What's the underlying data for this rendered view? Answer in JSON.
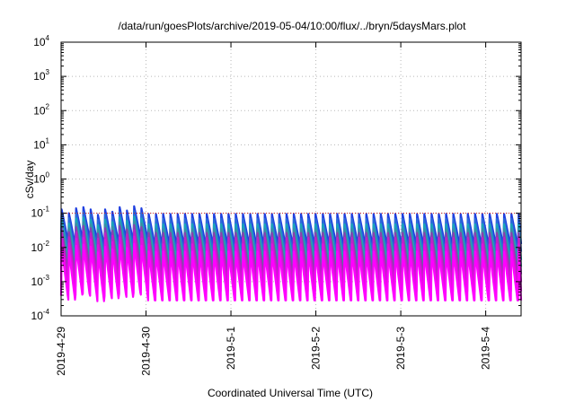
{
  "chart_data": {
    "type": "line",
    "title": "/data/run/goesPlots/archive/2019-05-04/10:00/flux/../bryn/5daysMars.plot",
    "xlabel": "Coordinated Universal Time (UTC)",
    "ylabel": "cSv/day",
    "yscale": "log",
    "ylim": [
      0.0001,
      10000
    ],
    "xlim": [
      "2019-04-29 00:00",
      "2019-05-04 10:00"
    ],
    "grid": true,
    "yticks": [
      {
        "base": "10",
        "exp": "-4"
      },
      {
        "base": "10",
        "exp": "-3"
      },
      {
        "base": "10",
        "exp": "-2"
      },
      {
        "base": "10",
        "exp": "-1"
      },
      {
        "base": "10",
        "exp": "0"
      },
      {
        "base": "10",
        "exp": "1"
      },
      {
        "base": "10",
        "exp": "2"
      },
      {
        "base": "10",
        "exp": "3"
      },
      {
        "base": "10",
        "exp": "4"
      }
    ],
    "xticks": [
      "2019-4-29",
      "2019-4-30",
      "2019-5-1",
      "2019-5-2",
      "2019-5-3",
      "2019-5-4"
    ],
    "sawtooth": {
      "start_hour": 0,
      "end_hour": 130,
      "period_hours": 2.05,
      "peak_values_first_day": [
        0.13,
        0.1,
        0.14,
        0.15,
        0.13,
        0.09,
        0.13,
        0.11,
        0.15,
        0.12,
        0.16,
        0.14
      ],
      "peak_value_typical": 0.095,
      "reference_level": 0.1
    },
    "series": [
      {
        "color": "#1f3fe0",
        "peak_factor": 1.0,
        "decay": 1.6
      },
      {
        "color": "#2a6ad8",
        "peak_factor": 0.72,
        "decay": 1.75
      },
      {
        "color": "#19a6b8",
        "peak_factor": 0.5,
        "decay": 1.9
      },
      {
        "color": "#3c8fa0",
        "peak_factor": 0.36,
        "decay": 2.0
      },
      {
        "color": "#8a3fb0",
        "peak_factor": 0.28,
        "decay": 2.2
      },
      {
        "color": "#c21fc8",
        "peak_factor": 0.2,
        "decay": 2.35
      },
      {
        "color": "#e010e0",
        "peak_factor": 0.13,
        "decay": 2.5
      },
      {
        "color": "#ff00ff",
        "peak_factor": 0.08,
        "decay": 2.6
      }
    ],
    "reference_line_color": "#d01818"
  }
}
